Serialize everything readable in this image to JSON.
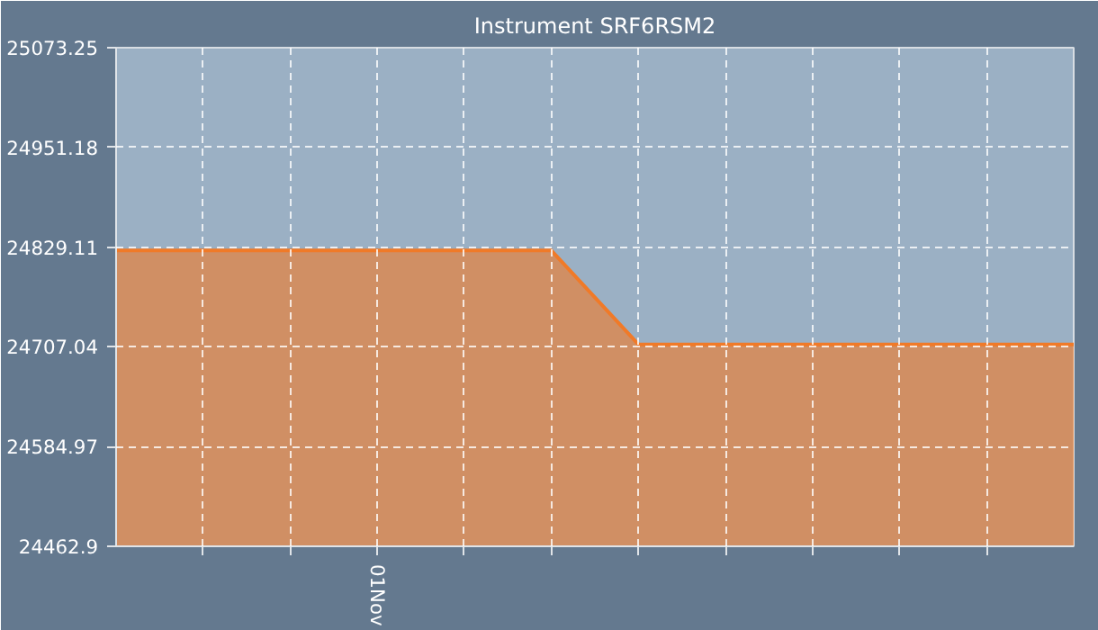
{
  "chart_data": {
    "type": "area",
    "title": "Instrument SRF6RSM2",
    "categories": [
      null,
      null,
      null,
      "01Nov",
      null,
      null,
      null,
      null,
      null,
      null,
      null,
      null
    ],
    "values": [
      24825,
      24825,
      24825,
      24825,
      24825,
      24825,
      24710,
      24710,
      24710,
      24710,
      24710,
      24710
    ],
    "color": "#f07a28",
    "ylim": [
      24462.9,
      25073.25
    ],
    "yticks": [
      {
        "value": 24462.9,
        "label": "24462.9"
      },
      {
        "value": 24584.97,
        "label": "24584.97"
      },
      {
        "value": 24707.04,
        "label": "24707.04"
      },
      {
        "value": 24829.11,
        "label": "24829.11"
      },
      {
        "value": 24951.18,
        "label": "24951.18"
      },
      {
        "value": 25073.25,
        "label": "25073.25"
      }
    ],
    "grid": true
  }
}
